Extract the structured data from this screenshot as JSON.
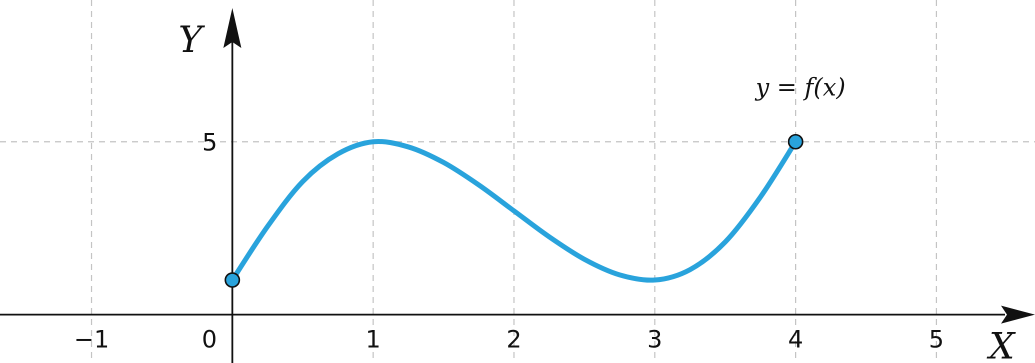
{
  "chart_data": {
    "type": "line",
    "title": "",
    "xlabel": "X",
    "ylabel": "Y",
    "xlim": [
      -1.65,
      5.7
    ],
    "ylim": [
      -1.4,
      9.1
    ],
    "x_ticks": [
      -1,
      0,
      1,
      2,
      3,
      4,
      5
    ],
    "x_tick_labels": [
      "−1",
      "0",
      "1",
      "2",
      "3",
      "4",
      "5"
    ],
    "y_ticks": [
      5
    ],
    "y_tick_labels": [
      "5"
    ],
    "grid": true,
    "series": [
      {
        "name": "y = f(x)",
        "color": "#29a3dc",
        "x": [
          0,
          0.25,
          0.5,
          0.75,
          1,
          1.25,
          1.5,
          1.75,
          2,
          2.25,
          2.5,
          2.75,
          3,
          3.25,
          3.5,
          3.75,
          4
        ],
        "y": [
          1,
          2.55,
          3.85,
          4.65,
          5,
          4.85,
          4.4,
          3.75,
          3,
          2.25,
          1.6,
          1.15,
          1,
          1.3,
          2.1,
          3.4,
          5
        ]
      }
    ],
    "endpoints": [
      {
        "x": 0,
        "y": 1
      },
      {
        "x": 4,
        "y": 5
      }
    ],
    "annotations": [
      "y = f(x)"
    ],
    "axis_line_color": "#111111",
    "grid_color": "#c4c4c4",
    "point_fill": "#29a3dc"
  }
}
